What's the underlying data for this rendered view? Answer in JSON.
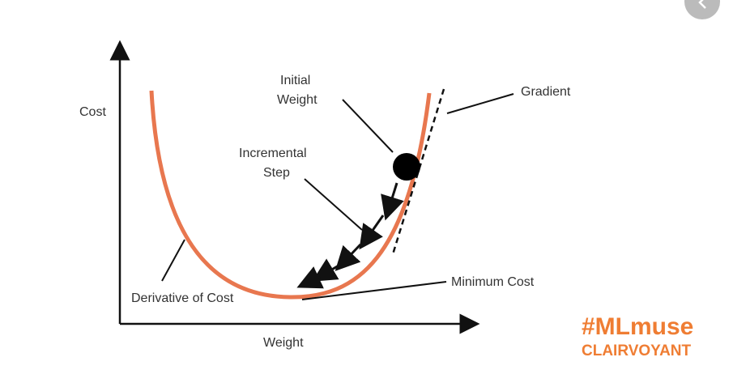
{
  "axes": {
    "y_label": "Cost",
    "x_label": "Weight"
  },
  "labels": {
    "initial_weight": [
      "Initial",
      "Weight"
    ],
    "incremental_step": [
      "Incremental",
      "Step"
    ],
    "gradient": "Gradient",
    "minimum_cost": "Minimum Cost",
    "derivative_of_cost": "Derivative of Cost"
  },
  "branding": {
    "hashtag": "#MLmuse",
    "company": "CLAIRVOYANT"
  }
}
